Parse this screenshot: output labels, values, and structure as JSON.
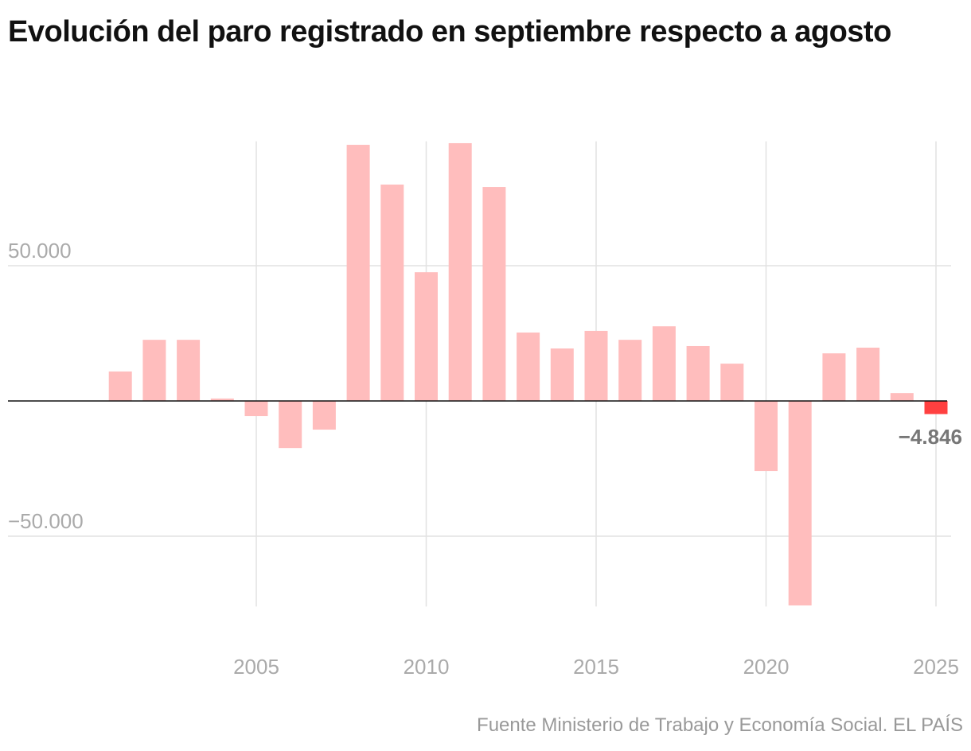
{
  "title": "Evolución del paro registrado en septiembre respecto a agosto",
  "source": "Fuente Ministerio de Trabajo y Economía Social. EL PAÍS",
  "chart_data": {
    "type": "bar",
    "title": "Evolución del paro registrado en septiembre respecto a agosto",
    "xlabel": "",
    "ylabel": "",
    "categories": [
      2001,
      2002,
      2003,
      2004,
      2005,
      2006,
      2007,
      2008,
      2009,
      2010,
      2011,
      2012,
      2013,
      2014,
      2015,
      2016,
      2017,
      2018,
      2019,
      2020,
      2021,
      2022,
      2023,
      2024,
      2025
    ],
    "values": [
      10900,
      22600,
      22600,
      900,
      -5600,
      -17400,
      -10600,
      94700,
      80000,
      47600,
      95300,
      79100,
      25300,
      19400,
      25900,
      22600,
      27600,
      20300,
      13800,
      -25900,
      -75600,
      17600,
      19700,
      2900,
      -4846
    ],
    "ylim": [
      -76000,
      96000
    ],
    "xlim": [
      2000,
      2025
    ],
    "y_ticks": [
      {
        "value": 50000,
        "label": "50.000"
      },
      {
        "value": -50000,
        "label": "−50.000"
      }
    ],
    "x_ticks": [
      {
        "value": 2005,
        "label": "2005"
      },
      {
        "value": 2010,
        "label": "2010"
      },
      {
        "value": 2015,
        "label": "2015"
      },
      {
        "value": 2020,
        "label": "2020"
      },
      {
        "value": 2025,
        "label": "2025"
      }
    ],
    "annotation": {
      "year": 2025,
      "label": "−4.846"
    },
    "grid": true,
    "colors": {
      "bar": "#ffbdbd",
      "highlight": "#ff4040",
      "grid": "#e2e2e2",
      "zero": "#111111"
    }
  }
}
